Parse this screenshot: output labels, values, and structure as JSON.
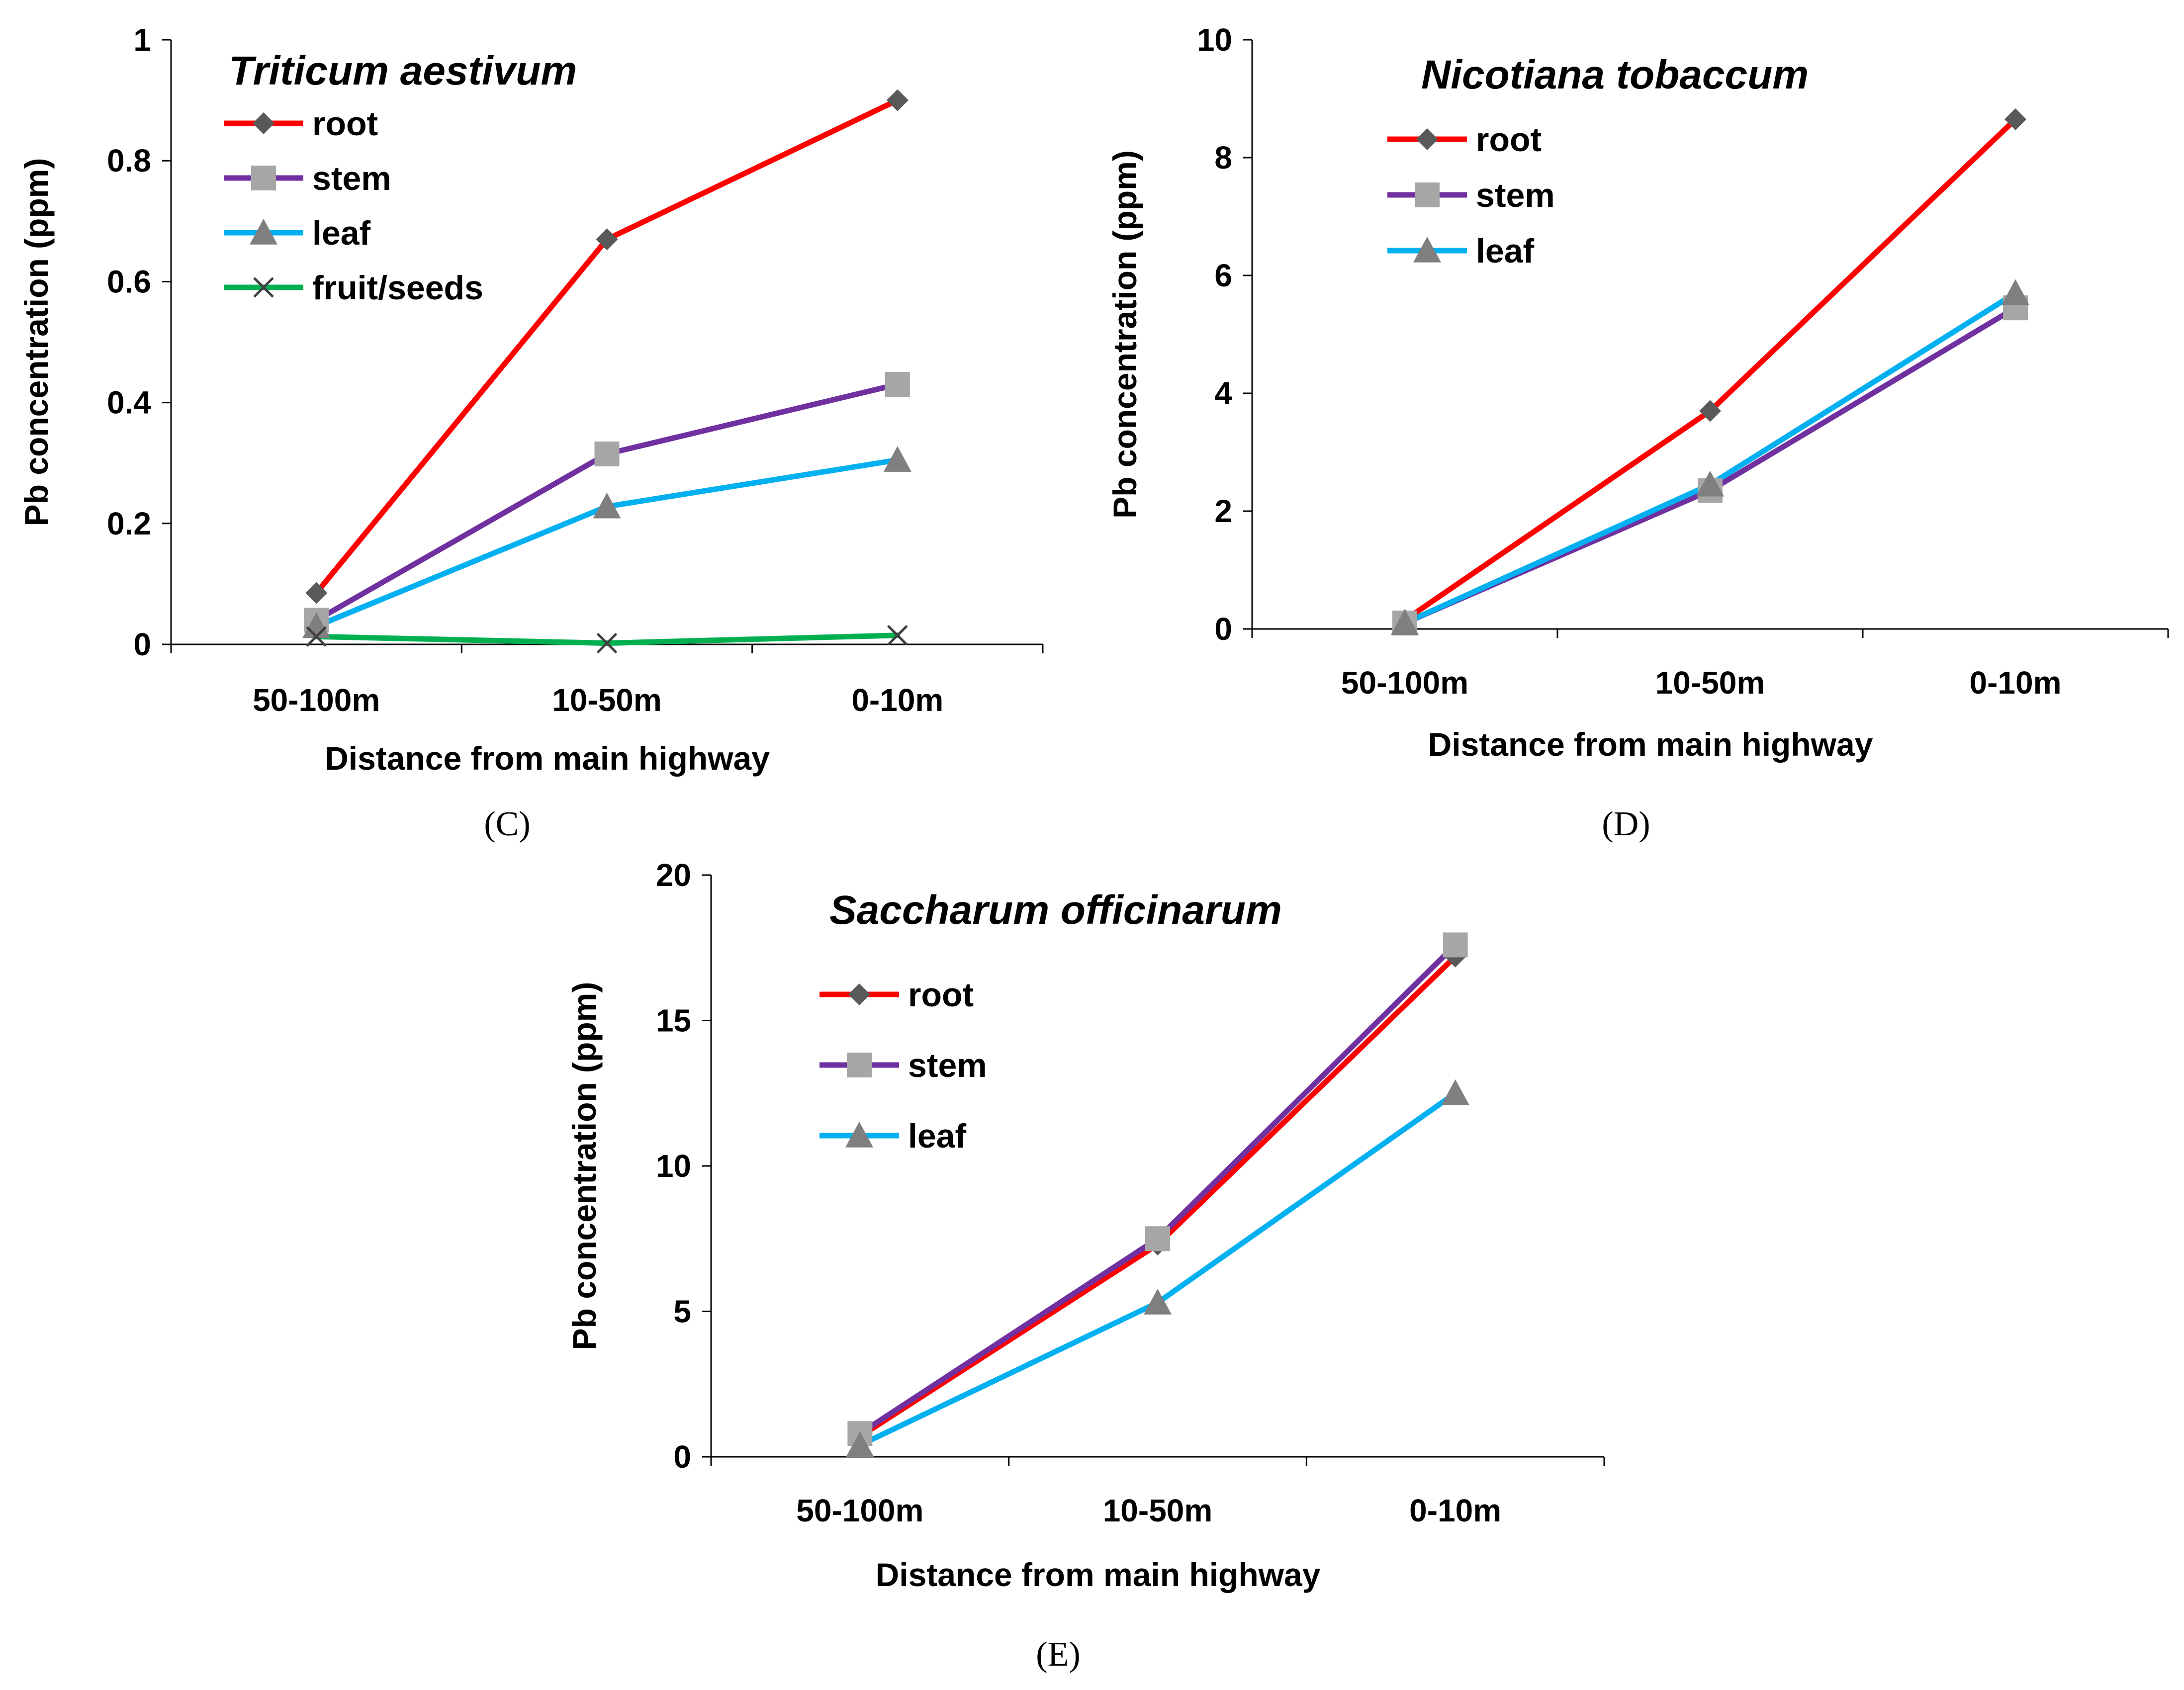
{
  "chart_data": [
    {
      "type": "line",
      "panel_label": "(C)",
      "title": "Triticum aestivum",
      "xlabel": "Distance from main highway",
      "ylabel": "Pb concentration (ppm)",
      "categories": [
        "50-100m",
        "10-50m",
        "0-10m"
      ],
      "ylim": [
        0,
        1
      ],
      "yticks": [
        "0",
        "0.2",
        "0.4",
        "0.6",
        "0.8",
        "1"
      ],
      "ytick_values": [
        0,
        0.2,
        0.4,
        0.6,
        0.8,
        1
      ],
      "legend_position": "top-left",
      "series": [
        {
          "name": "root",
          "values": [
            0.085,
            0.67,
            0.9
          ],
          "color": "#ff0000",
          "marker": "diamond"
        },
        {
          "name": "stem",
          "values": [
            0.04,
            0.315,
            0.43
          ],
          "color": "#7030a0",
          "marker": "square"
        },
        {
          "name": "leaf",
          "values": [
            0.03,
            0.228,
            0.305
          ],
          "color": "#00b0f0",
          "marker": "triangle"
        },
        {
          "name": "fruit/seeds",
          "values": [
            0.013,
            0.002,
            0.015
          ],
          "color": "#00b050",
          "marker": "x"
        }
      ]
    },
    {
      "type": "line",
      "panel_label": "(D)",
      "title": "Nicotiana tobaccum",
      "xlabel": "Distance from main highway",
      "ylabel": "Pb concentration (ppm)",
      "categories": [
        "50-100m",
        "10-50m",
        "0-10m"
      ],
      "ylim": [
        0,
        10
      ],
      "yticks": [
        "0",
        "2",
        "4",
        "6",
        "8",
        "10"
      ],
      "ytick_values": [
        0,
        2,
        4,
        6,
        8,
        10
      ],
      "legend_position": "top-left",
      "series": [
        {
          "name": "root",
          "values": [
            0.15,
            3.7,
            8.65
          ],
          "color": "#ff0000",
          "marker": "diamond"
        },
        {
          "name": "stem",
          "values": [
            0.1,
            2.35,
            5.45
          ],
          "color": "#7030a0",
          "marker": "square"
        },
        {
          "name": "leaf",
          "values": [
            0.1,
            2.45,
            5.7
          ],
          "color": "#00b0f0",
          "marker": "triangle"
        }
      ]
    },
    {
      "type": "line",
      "panel_label": "(E)",
      "title": "Saccharum officinarum",
      "xlabel": "Distance from main highway",
      "ylabel": "Pb concentration (ppm)",
      "categories": [
        "50-100m",
        "10-50m",
        "0-10m"
      ],
      "ylim": [
        0,
        20
      ],
      "yticks": [
        "0",
        "5",
        "10",
        "15",
        "20"
      ],
      "ytick_values": [
        0,
        5,
        10,
        15,
        20
      ],
      "legend_position": "top-left",
      "series": [
        {
          "name": "root",
          "values": [
            0.7,
            7.3,
            17.2
          ],
          "color": "#ff0000",
          "marker": "diamond"
        },
        {
          "name": "stem",
          "values": [
            0.8,
            7.5,
            17.6
          ],
          "color": "#7030a0",
          "marker": "square"
        },
        {
          "name": "leaf",
          "values": [
            0.4,
            5.3,
            12.5
          ],
          "color": "#00b0f0",
          "marker": "triangle"
        }
      ]
    }
  ]
}
